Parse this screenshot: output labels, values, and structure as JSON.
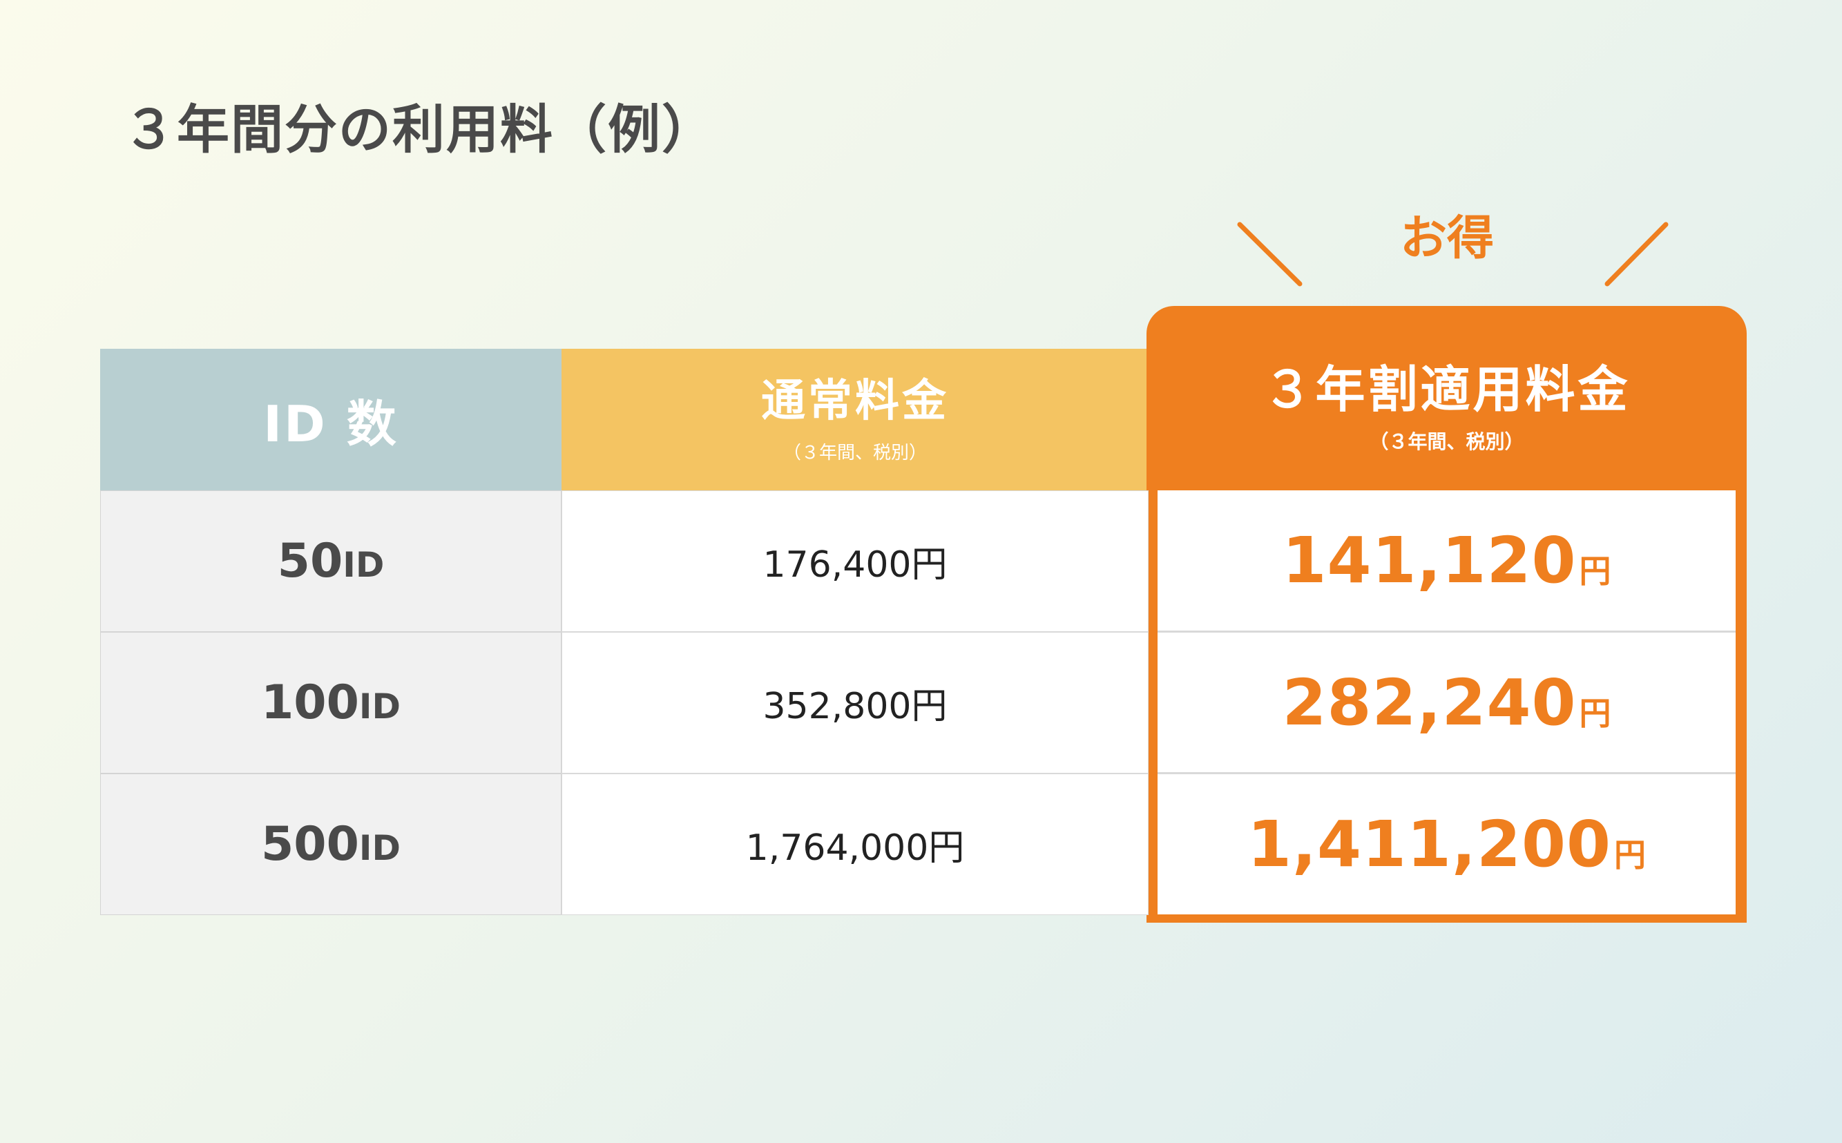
{
  "title": "３年間分の利用料（例）",
  "badge": "お得",
  "accent_color": "#ef7f1f",
  "header": {
    "id_col": "ID 数",
    "regular_col": "通常料金",
    "regular_sub": "（３年間、税別）",
    "discount_col": "３年割適用料金",
    "discount_sub": "（３年間、税別）"
  },
  "rows": [
    {
      "id_num": "50",
      "id_unit": "ID",
      "regular": "176,400円",
      "discount": "141,120",
      "discount_unit": "円"
    },
    {
      "id_num": "100",
      "id_unit": "ID",
      "regular": "352,800円",
      "discount": "282,240",
      "discount_unit": "円"
    },
    {
      "id_num": "500",
      "id_unit": "ID",
      "regular": "1,764,000円",
      "discount": "1,411,200",
      "discount_unit": "円"
    }
  ]
}
